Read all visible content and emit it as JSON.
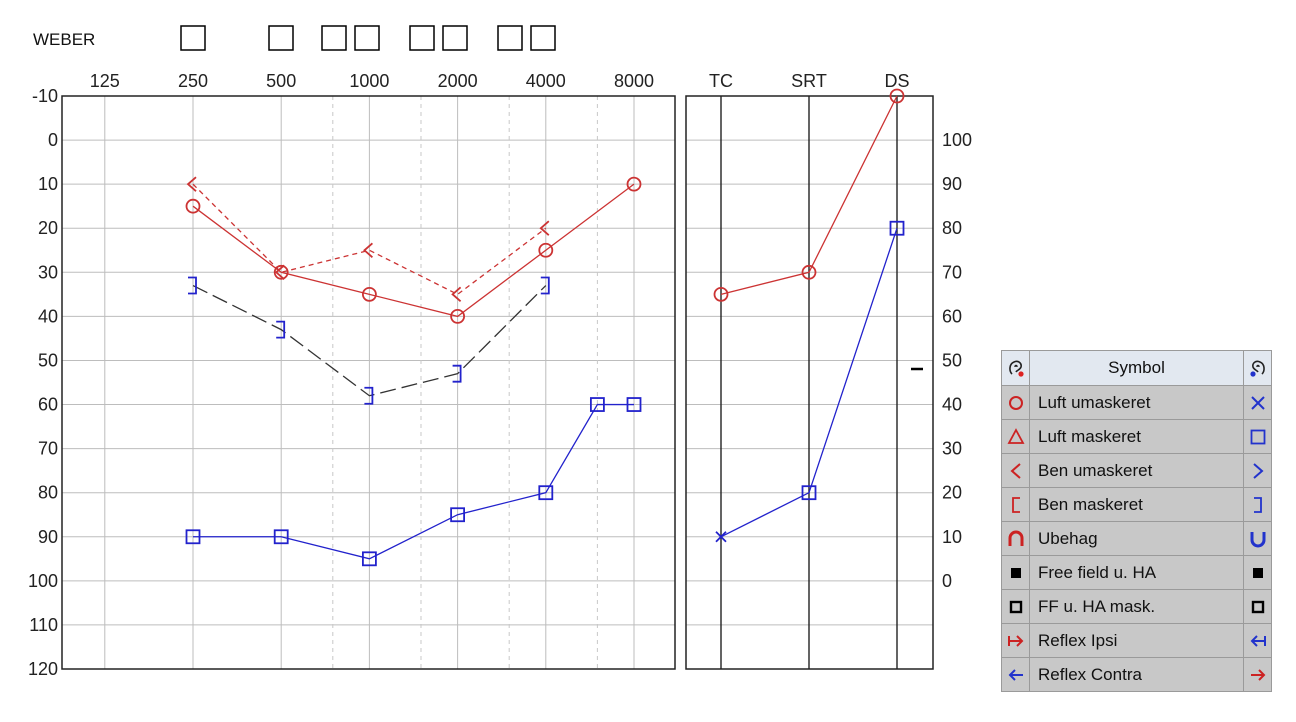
{
  "weber_label": "WEBER",
  "chart_data": {
    "type": "line",
    "audiogram": {
      "x_ticks": [
        125,
        250,
        500,
        1000,
        2000,
        4000,
        8000
      ],
      "y_ticks": [
        -10,
        0,
        10,
        20,
        30,
        40,
        50,
        60,
        70,
        80,
        90,
        100,
        110,
        120
      ],
      "ylim": [
        -10,
        120
      ],
      "y_inverted": true,
      "x_scale": "log2",
      "series": [
        {
          "marker": "circle",
          "color": "#cc3333",
          "line": "solid",
          "x": [
            250,
            500,
            1000,
            2000,
            4000,
            8000
          ],
          "y": [
            15,
            30,
            35,
            40,
            25,
            10
          ]
        },
        {
          "marker": "lt",
          "color": "#cc3333",
          "line": "dashed",
          "x": [
            250,
            500,
            1000,
            2000,
            4000
          ],
          "y": [
            10,
            30,
            25,
            35,
            20
          ]
        },
        {
          "marker": "rbracket",
          "color": "#2222cc",
          "line": "dashed-dark",
          "x": [
            250,
            500,
            1000,
            2000,
            4000
          ],
          "y": [
            33,
            43,
            58,
            53,
            33
          ]
        },
        {
          "marker": "square",
          "color": "#2222cc",
          "line": "solid",
          "x": [
            250,
            500,
            1000,
            2000,
            4000,
            6000,
            8000
          ],
          "y": [
            90,
            90,
            95,
            85,
            80,
            60,
            60
          ]
        }
      ]
    },
    "speech": {
      "categories": [
        "TC",
        "SRT",
        "DS"
      ],
      "right_ticks": [
        100,
        90,
        80,
        70,
        60,
        50,
        40,
        30,
        20,
        10,
        0
      ],
      "series": [
        {
          "marker": "circle",
          "color": "#cc3333",
          "values": [
            35,
            30,
            -10
          ]
        },
        {
          "marker": "x-square",
          "color": "#2222cc",
          "values": [
            90,
            80,
            20
          ]
        }
      ]
    }
  },
  "legend": {
    "header": "Symbol",
    "rows": [
      {
        "label": "Luft umaskeret",
        "left_icon": "circle-icon",
        "right_icon": "x-icon"
      },
      {
        "label": "Luft maskeret",
        "left_icon": "triangle-icon",
        "right_icon": "square-icon"
      },
      {
        "label": "Ben umaskeret",
        "left_icon": "less-than-icon",
        "right_icon": "greater-than-icon"
      },
      {
        "label": "Ben maskeret",
        "left_icon": "left-bracket-icon",
        "right_icon": "right-bracket-icon"
      },
      {
        "label": "Ubehag",
        "left_icon": "n-shape-icon",
        "right_icon": "u-shape-icon"
      },
      {
        "label": "Free field u. HA",
        "left_icon": "filled-square-icon",
        "right_icon": "filled-square-icon"
      },
      {
        "label": "FF u. HA mask.",
        "left_icon": "hollow-square-icon",
        "right_icon": "hollow-square-icon"
      },
      {
        "label": "Reflex Ipsi",
        "left_icon": "arrow-right-bar-icon",
        "right_icon": "arrow-left-bar-icon"
      },
      {
        "label": "Reflex Contra",
        "left_icon": "arrow-left-icon",
        "right_icon": "arrow-right-icon"
      }
    ]
  },
  "colors": {
    "red": "#cc3333",
    "blue": "#2222cc",
    "dark": "#333333"
  }
}
